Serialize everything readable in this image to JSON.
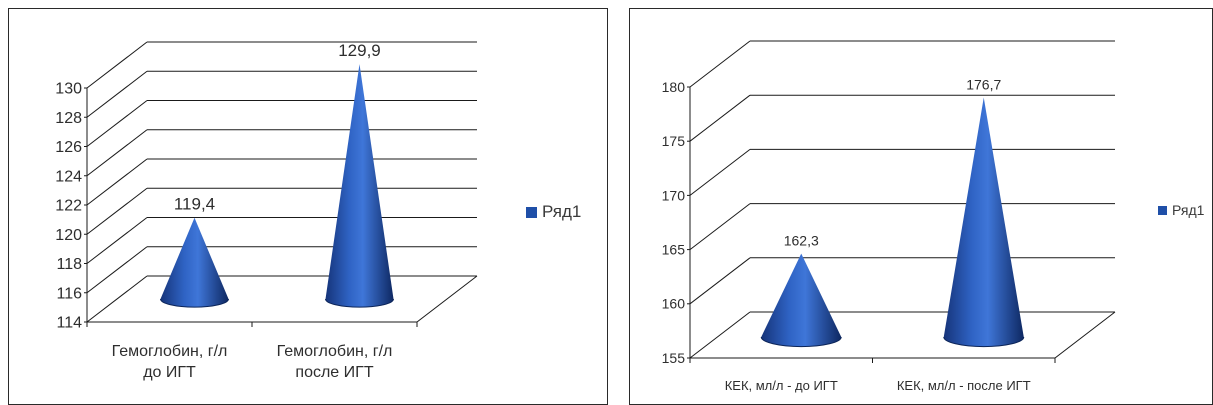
{
  "chart_data": [
    {
      "type": "bar",
      "shape": "3d-cone",
      "categories": [
        [
          "Гемоглобин, г/л",
          "до ИГТ"
        ],
        [
          "Гемоглобин, г/л",
          "после ИГТ"
        ]
      ],
      "series": [
        {
          "name": "Ряд1",
          "values": [
            119.4,
            129.9
          ],
          "color": "#1f4fa8"
        }
      ],
      "data_labels": [
        "119,4",
        "129,9"
      ],
      "ylim": [
        114,
        130
      ],
      "yticks": [
        "114",
        "116",
        "118",
        "120",
        "122",
        "124",
        "126",
        "128",
        "130"
      ],
      "grid": true,
      "legend": "right"
    },
    {
      "type": "bar",
      "shape": "3d-cone",
      "categories": [
        [
          "КЕК, мл/л  - до ИГТ"
        ],
        [
          "КЕК, мл/л - после ИГТ"
        ]
      ],
      "series": [
        {
          "name": "Ряд1",
          "values": [
            162.3,
            176.7
          ],
          "color": "#1f4fa8"
        }
      ],
      "data_labels": [
        "162,3",
        "176,7"
      ],
      "ylim": [
        155,
        180
      ],
      "yticks": [
        "155",
        "160",
        "165",
        "170",
        "175",
        "180"
      ],
      "grid": true,
      "legend": "right"
    }
  ]
}
